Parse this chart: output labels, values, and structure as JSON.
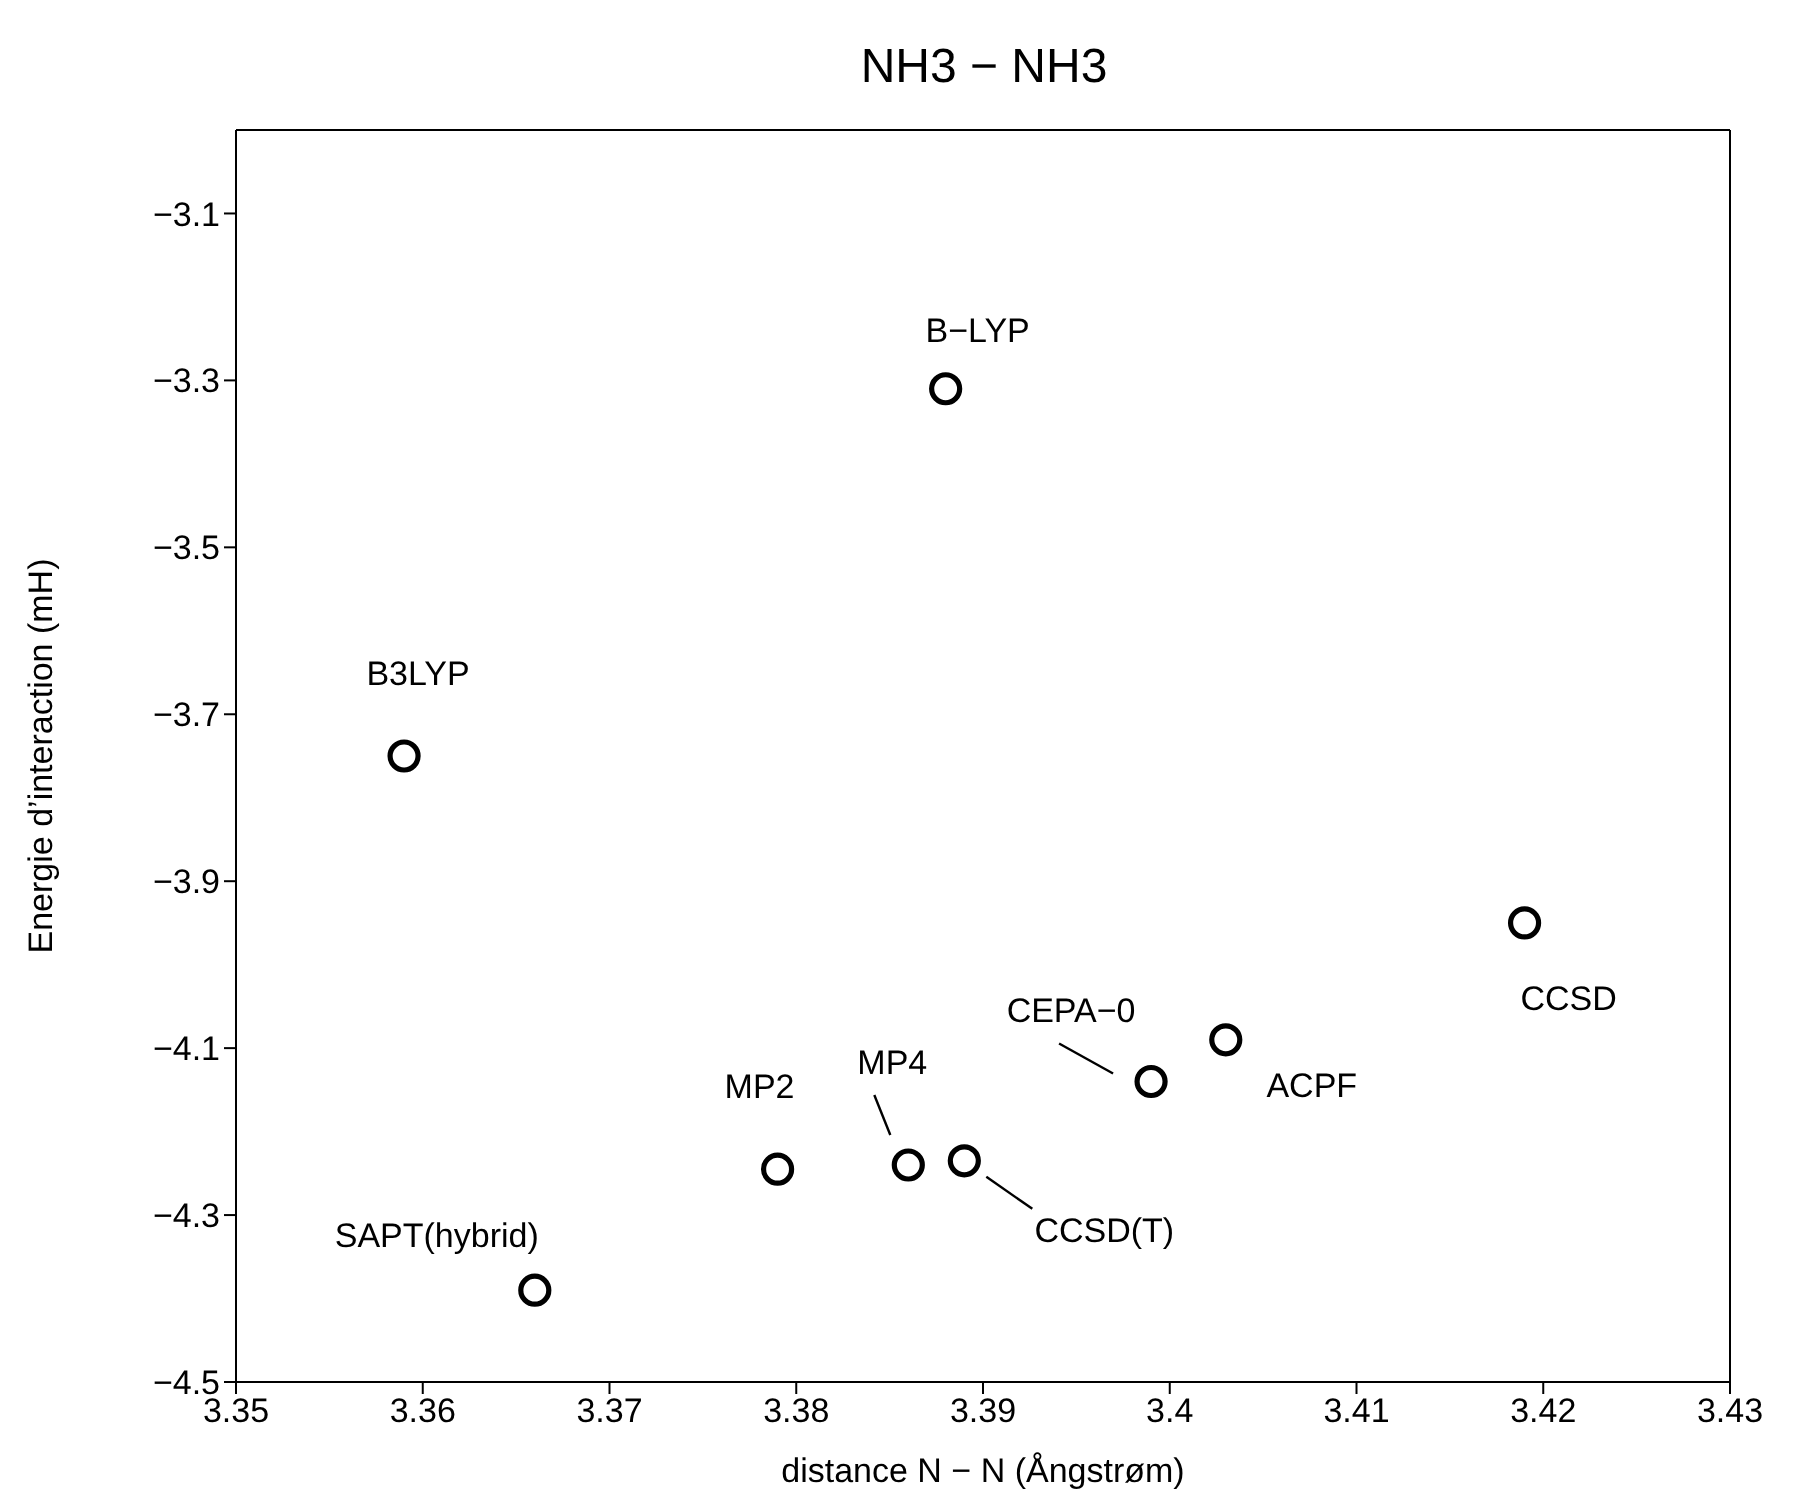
{
  "chart_data": {
    "type": "scatter",
    "title": "NH3 − NH3",
    "xlabel": "distance N − N (Ångstrøm)",
    "ylabel": "Energie d’interaction (mH)",
    "x": [
      3.359,
      3.366,
      3.379,
      3.386,
      3.388,
      3.389,
      3.399,
      3.403,
      3.419
    ],
    "series": [
      {
        "color": "#000000",
        "values": [
          -3.75,
          -4.39,
          -4.245,
          -4.24,
          -3.31,
          -4.235,
          -4.14,
          -4.09,
          -3.95
        ]
      }
    ],
    "annotations": [
      {
        "text": "B3LYP",
        "x": 3.359,
        "y": -3.75
      },
      {
        "text": "SAPT(hybrid)",
        "x": 3.366,
        "y": -4.39
      },
      {
        "text": "MP2",
        "x": 3.379,
        "y": -4.245
      },
      {
        "text": "MP4",
        "x": 3.386,
        "y": -4.24
      },
      {
        "text": "B−LYP",
        "x": 3.388,
        "y": -3.31
      },
      {
        "text": "CCSD(T)",
        "x": 3.389,
        "y": -4.235
      },
      {
        "text": "CEPA−0",
        "x": 3.399,
        "y": -4.14
      },
      {
        "text": "ACPF",
        "x": 3.403,
        "y": -4.09
      },
      {
        "text": "CCSD",
        "x": 3.419,
        "y": -3.95
      }
    ],
    "xlim": [
      3.35,
      3.43
    ],
    "xticks": [
      3.35,
      3.36,
      3.37,
      3.38,
      3.39,
      3.4,
      3.41,
      3.42,
      3.43
    ],
    "ylim": [
      -4.5,
      -3.0
    ],
    "yticks": [
      -4.5,
      -4.3,
      -4.1,
      -3.9,
      -3.7,
      -3.5,
      -3.3,
      -3.1
    ],
    "grid": false,
    "legend": false,
    "marker": "circle"
  }
}
